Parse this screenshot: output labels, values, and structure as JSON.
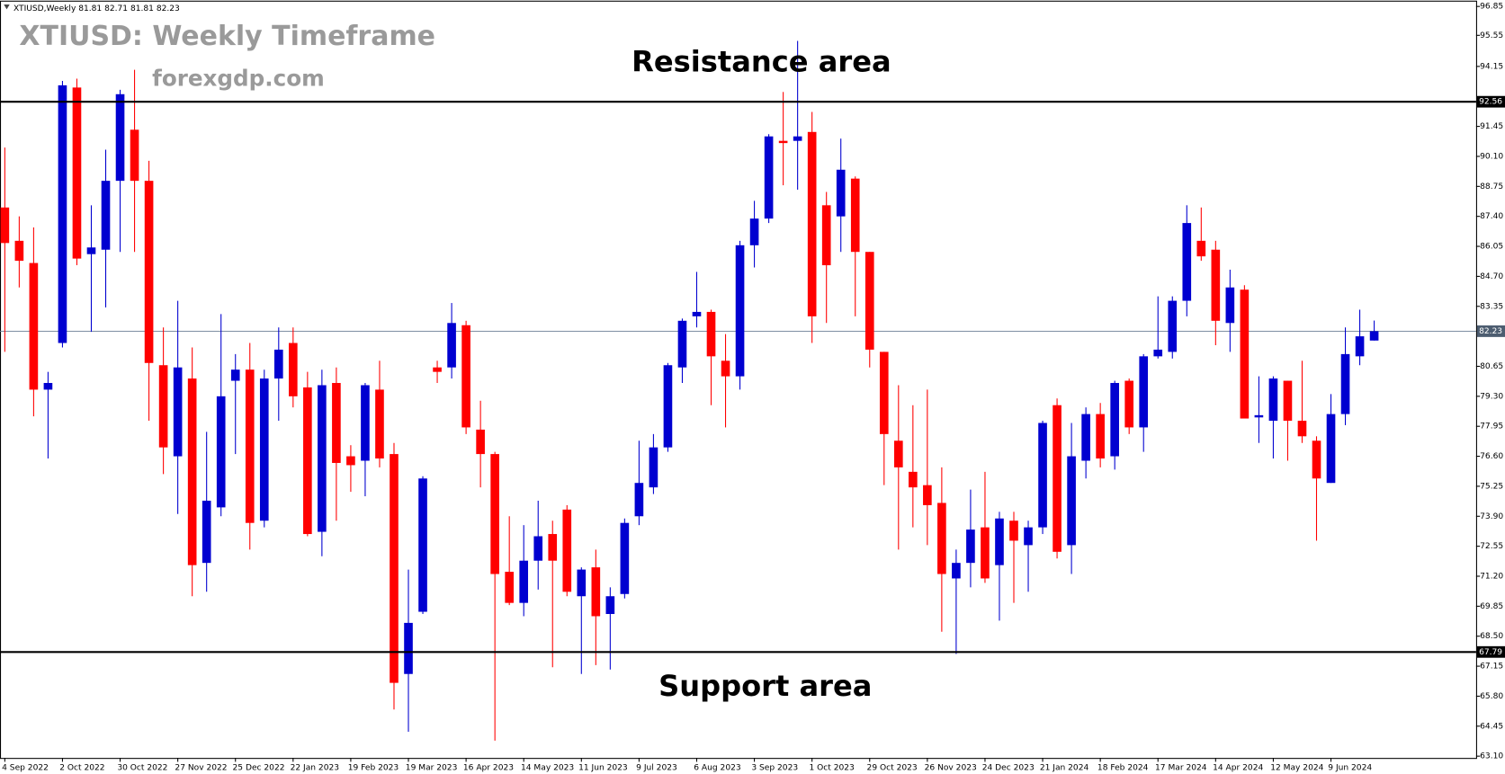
{
  "chart_data": {
    "type": "candlestick",
    "header": "XTIUSD,Weekly  81.81 82.71 81.81 82.23",
    "title": "XTIUSD: Weekly Timeframe",
    "watermark": "forexgdp.com",
    "annotations": {
      "resistance": "Resistance area",
      "support": "Support area"
    },
    "resistance_level": 92.56,
    "support_level": 67.79,
    "current_price": 82.23,
    "up_color": "#0000d0",
    "down_color": "#ff0000",
    "categories": [
      "4 Sep 2022",
      null,
      null,
      null,
      "2 Oct 2022",
      null,
      null,
      null,
      "30 Oct 2022",
      null,
      null,
      null,
      "27 Nov 2022",
      null,
      null,
      null,
      "25 Dec 2022",
      null,
      null,
      null,
      "22 Jan 2023",
      null,
      null,
      null,
      "19 Feb 2023",
      null,
      null,
      null,
      "19 Mar 2023",
      null,
      null,
      null,
      "16 Apr 2023",
      null,
      null,
      null,
      "14 May 2023",
      null,
      null,
      null,
      "11 Jun 2023",
      null,
      null,
      null,
      "9 Jul 2023",
      null,
      null,
      null,
      "6 Aug 2023",
      null,
      null,
      null,
      "3 Sep 2023",
      null,
      null,
      null,
      "1 Oct 2023",
      null,
      null,
      null,
      "29 Oct 2023",
      null,
      null,
      null,
      "26 Nov 2023",
      null,
      null,
      null,
      "24 Dec 2023",
      null,
      null,
      null,
      "21 Jan 2024",
      null,
      null,
      null,
      "18 Feb 2024",
      null,
      null,
      null,
      "17 Mar 2024",
      null,
      null,
      null,
      "14 Apr 2024",
      null,
      null,
      null,
      "12 May 2024",
      null,
      null,
      null,
      "9 Jun 2024",
      null,
      null,
      null
    ],
    "open": [
      87.8,
      86.3,
      85.3,
      79.6,
      81.7,
      93.2,
      85.7,
      85.9,
      89.0,
      91.3,
      89.0,
      80.7,
      76.6,
      80.1,
      71.8,
      74.3,
      80.0,
      80.5,
      73.7,
      80.1,
      81.7,
      79.7,
      73.2,
      79.9,
      76.6,
      76.4,
      79.6,
      76.7,
      66.8,
      69.6,
      80.6,
      80.6,
      82.5,
      77.8,
      76.7,
      71.4,
      70.0,
      71.9,
      73.1,
      74.2,
      70.3,
      71.6,
      69.5,
      70.4,
      73.9,
      75.2,
      77.0,
      80.6,
      82.9,
      83.1,
      80.9,
      80.2,
      86.1,
      87.3,
      90.8,
      90.8,
      91.2,
      87.9,
      87.4,
      89.1,
      85.8,
      81.3,
      77.3,
      75.9,
      75.3,
      74.5,
      71.1,
      71.8,
      73.4,
      71.7,
      73.7,
      72.6,
      73.4,
      78.9,
      72.6,
      76.4,
      78.5,
      76.6,
      80.0,
      77.9,
      81.1,
      81.3,
      83.6,
      86.3,
      85.9,
      82.6,
      84.1,
      78.35,
      78.2,
      80.0,
      78.2,
      77.3,
      75.4,
      78.5,
      81.1,
      81.81
    ],
    "high": [
      90.5,
      87.4,
      86.9,
      80.4,
      93.5,
      93.6,
      87.9,
      90.4,
      93.1,
      94.0,
      89.9,
      82.4,
      83.6,
      81.5,
      77.7,
      83.0,
      81.2,
      81.7,
      80.5,
      82.4,
      82.4,
      80.4,
      80.5,
      80.6,
      77.1,
      79.9,
      80.9,
      77.2,
      71.5,
      75.7,
      80.9,
      83.5,
      82.7,
      79.1,
      76.8,
      73.9,
      73.5,
      74.6,
      73.7,
      74.4,
      71.6,
      72.4,
      70.7,
      73.8,
      77.3,
      77.6,
      80.8,
      82.8,
      84.9,
      83.2,
      82.1,
      86.3,
      88.1,
      91.1,
      93.0,
      95.3,
      92.1,
      88.5,
      90.9,
      89.2,
      85.8,
      81.3,
      79.8,
      78.9,
      79.6,
      76.1,
      72.4,
      75.1,
      75.9,
      74.1,
      74.1,
      73.7,
      78.2,
      79.2,
      78.1,
      78.8,
      79.0,
      80.0,
      80.1,
      81.2,
      83.8,
      83.8,
      87.9,
      87.8,
      86.3,
      85.0,
      84.3,
      80.2,
      80.2,
      80.0,
      80.9,
      77.5,
      79.4,
      82.4,
      83.2,
      82.71
    ],
    "low": [
      81.3,
      84.2,
      78.4,
      76.5,
      81.5,
      85.2,
      82.2,
      83.3,
      85.8,
      85.8,
      78.2,
      75.8,
      74.0,
      70.3,
      70.5,
      73.9,
      76.7,
      72.4,
      73.4,
      78.2,
      78.8,
      73.0,
      72.1,
      73.7,
      75.0,
      74.8,
      76.1,
      65.2,
      64.2,
      69.5,
      79.9,
      80.1,
      77.6,
      75.2,
      63.8,
      69.9,
      69.4,
      70.6,
      67.1,
      70.3,
      66.8,
      67.2,
      67.0,
      70.2,
      73.5,
      74.9,
      76.8,
      79.9,
      82.4,
      78.9,
      77.9,
      79.6,
      85.1,
      87.1,
      88.8,
      88.6,
      81.7,
      82.6,
      85.8,
      82.9,
      80.6,
      75.3,
      72.4,
      73.4,
      72.6,
      68.7,
      67.7,
      70.7,
      70.9,
      69.2,
      70.0,
      70.5,
      73.1,
      72.0,
      71.3,
      75.6,
      76.1,
      76.0,
      77.6,
      76.8,
      81.0,
      81.0,
      82.9,
      85.4,
      81.6,
      81.3,
      78.3,
      77.2,
      76.5,
      76.4,
      77.2,
      72.8,
      75.4,
      78.0,
      80.7,
      81.81
    ],
    "close": [
      86.2,
      85.4,
      79.6,
      79.9,
      93.3,
      85.5,
      86.0,
      89.0,
      92.9,
      89.0,
      80.8,
      77.0,
      80.6,
      71.7,
      74.6,
      79.3,
      80.5,
      73.6,
      80.1,
      81.4,
      79.3,
      73.1,
      79.8,
      76.3,
      76.2,
      79.8,
      76.5,
      66.4,
      69.1,
      75.6,
      80.4,
      82.6,
      77.9,
      76.7,
      71.3,
      70.0,
      71.9,
      73.0,
      71.9,
      70.5,
      71.5,
      69.4,
      70.3,
      73.6,
      75.4,
      77.0,
      80.7,
      82.7,
      83.1,
      81.1,
      80.2,
      86.1,
      87.3,
      91.0,
      90.7,
      91.0,
      82.9,
      85.2,
      89.5,
      85.8,
      81.4,
      77.6,
      76.1,
      75.2,
      74.4,
      71.3,
      71.8,
      73.3,
      71.1,
      73.8,
      72.8,
      73.4,
      78.1,
      72.3,
      76.6,
      78.5,
      76.5,
      79.9,
      77.9,
      81.1,
      81.4,
      83.6,
      87.1,
      85.6,
      82.7,
      84.2,
      78.3,
      78.45,
      80.1,
      78.2,
      77.5,
      75.6,
      78.5,
      81.2,
      82.0,
      82.23
    ],
    "ylim": [
      63.02,
      97.11
    ],
    "yticks": [
      96.85,
      95.55,
      94.15,
      91.45,
      {
        "value": 90.1,
        "label": "90.10"
      },
      88.75,
      {
        "value": 87.4,
        "label": "87.40"
      },
      86.05,
      {
        "value": 84.7,
        "label": "84.70"
      },
      83.35,
      80.65,
      {
        "value": 79.3,
        "label": "79.30"
      },
      77.95,
      {
        "value": 76.6,
        "label": "76.60"
      },
      75.25,
      {
        "value": 73.9,
        "label": "73.90"
      },
      72.55,
      {
        "value": 71.2,
        "label": "71.20"
      },
      69.85,
      {
        "value": 68.5,
        "label": "68.50"
      },
      67.15,
      {
        "value": 65.8,
        "label": "65.80"
      },
      64.45,
      {
        "value": 63.1,
        "label": "63.10"
      }
    ],
    "grid": false
  }
}
